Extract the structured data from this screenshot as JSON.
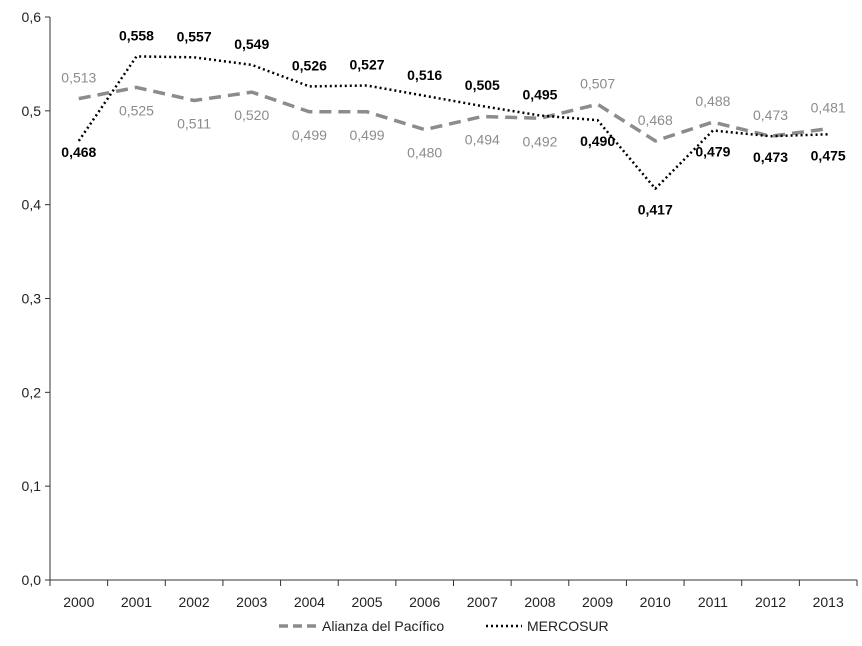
{
  "chart_data": {
    "type": "line",
    "title": "",
    "xlabel": "",
    "ylabel": "",
    "categories": [
      "2000",
      "2001",
      "2002",
      "2003",
      "2004",
      "2005",
      "2006",
      "2007",
      "2008",
      "2009",
      "2010",
      "2011",
      "2012",
      "2013"
    ],
    "ylim": [
      0,
      0.6
    ],
    "yticks": [
      "0,0",
      "0,1",
      "0,2",
      "0,3",
      "0,4",
      "0,5",
      "0,6"
    ],
    "grid": false,
    "legend_position": "bottom",
    "series": [
      {
        "name": "Alianza del Pacífico",
        "color": "#8c8c8c",
        "style": "dashed",
        "values": [
          0.513,
          0.525,
          0.511,
          0.52,
          0.499,
          0.499,
          0.48,
          0.494,
          0.492,
          0.507,
          0.468,
          0.488,
          0.473,
          0.481
        ],
        "labels": [
          "0,513",
          "0,525",
          "0,511",
          "0,520",
          "0,499",
          "0,499",
          "0,480",
          "0,494",
          "0,492",
          "0,507",
          "0,468",
          "0,488",
          "0,473",
          "0,481"
        ]
      },
      {
        "name": "MERCOSUR",
        "color": "#000000",
        "style": "dotted",
        "values": [
          0.468,
          0.558,
          0.557,
          0.549,
          0.526,
          0.527,
          0.516,
          0.505,
          0.495,
          0.49,
          0.417,
          0.479,
          0.473,
          0.475
        ],
        "labels": [
          "0,468",
          "0,558",
          "0,557",
          "0,549",
          "0,526",
          "0,527",
          "0,516",
          "0,505",
          "0,495",
          "0,490",
          "0,417",
          "0,479",
          "0,473",
          "0,475"
        ]
      }
    ]
  }
}
